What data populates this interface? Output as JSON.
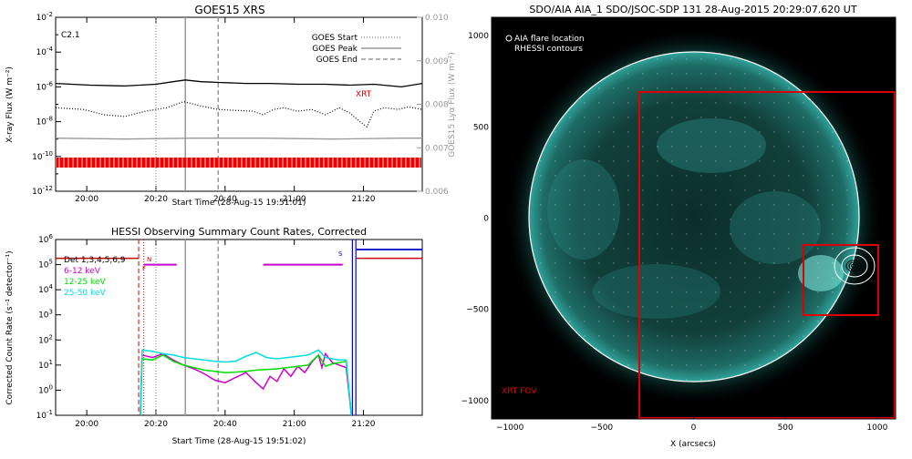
{
  "goes": {
    "title": "GOES15 XRS",
    "xlabel": "Start Time (28-Aug-15 19:51:01)",
    "ylabel_left": "X-ray Flux (W m⁻²)",
    "ylabel_right": "GOES15 Lyα Flux (W m⁻²)",
    "class_label": "C2.1",
    "xrt_label": "XRT",
    "legend": [
      "GOES Start",
      "GOES Peak",
      "GOES End"
    ]
  },
  "hessi": {
    "title": "HESSI Observing Summary Count Rates, Corrected",
    "xlabel": "Start Time (28-Aug-15 19:51:02)",
    "ylabel": "Corrected Count Rate (s⁻¹ detector⁻¹)",
    "detectors": "Det 1,3,4,5,6,9",
    "legend": [
      {
        "name": "6-12 keV",
        "color": "#cc00cc"
      },
      {
        "name": "12-25 keV",
        "color": "#00dd00"
      },
      {
        "name": "25-50 keV",
        "color": "#00dddd"
      }
    ],
    "flag_N": "N",
    "flag_F": "F",
    "flag_S": "S"
  },
  "aia": {
    "title": "SDO/AIA AIA_1 SDO/JSOC-SDP 131 28-Aug-2015 20:29:07.620 UT",
    "legend1": "AIA flare location",
    "legend2": "RHESSI contours",
    "fov_label": "XRT FOV",
    "xlabel": "X (arcsecs)"
  },
  "chart_data": [
    {
      "type": "line",
      "title": "GOES15 XRS",
      "xlabel": "Start Time (28-Aug-15 19:51:01)",
      "ylabel": "X-ray Flux (W m-2)",
      "ylabel_right": "GOES15 Lyα Flux (W m-2)",
      "log_y": true,
      "x_ticks": [
        "20:00",
        "20:20",
        "20:40",
        "21:00",
        "21:20"
      ],
      "x_tick_minutes": [
        9,
        29,
        49,
        69,
        89
      ],
      "xlim_minutes": [
        0,
        106
      ],
      "y_tick_exponents": [
        -2,
        -4,
        -6,
        -8,
        -10,
        -12
      ],
      "ylim_log": [
        -12,
        -2
      ],
      "y_right_ticks": [
        "0.010",
        "0.009",
        "0.008",
        "0.007",
        "0.006"
      ],
      "ylim_right": [
        0.006,
        0.01
      ],
      "events_minutes": {
        "start": 29,
        "peak": 37.5,
        "end": 47
      },
      "series": [
        {
          "name": "",
          "color": "#000000",
          "style": "solid",
          "x": [
            0,
            10,
            20,
            29,
            34,
            37.5,
            42,
            48,
            55,
            62,
            70,
            78,
            85,
            92,
            100,
            106
          ],
          "log_y": [
            -5.8,
            -5.9,
            -5.95,
            -5.85,
            -5.7,
            -5.6,
            -5.7,
            -5.75,
            -5.8,
            -5.8,
            -5.85,
            -5.85,
            -5.9,
            -5.85,
            -6.0,
            -5.8
          ]
        },
        {
          "name": "",
          "color": "#000000",
          "style": "dotted",
          "x": [
            0,
            8,
            14,
            20,
            26,
            32,
            37,
            42,
            47,
            52,
            57,
            60,
            63,
            66,
            70,
            74,
            78,
            82,
            85,
            88,
            90,
            92,
            95,
            99,
            102,
            106
          ],
          "log_y": [
            -7.2,
            -7.3,
            -7.6,
            -7.7,
            -7.4,
            -7.2,
            -6.85,
            -7.1,
            -7.3,
            -7.35,
            -7.4,
            -7.6,
            -7.3,
            -7.2,
            -7.4,
            -7.3,
            -7.6,
            -7.2,
            -7.5,
            -8.0,
            -8.3,
            -7.4,
            -7.2,
            -7.3,
            -7.15,
            -7.3
          ]
        },
        {
          "name": "",
          "color": "#999999",
          "style": "solid",
          "x": [
            0,
            20,
            40,
            60,
            80,
            100,
            106
          ],
          "log_y": [
            -8.95,
            -9.0,
            -8.95,
            -8.95,
            -9.0,
            -8.95,
            -8.95
          ]
        }
      ]
    },
    {
      "type": "line",
      "title": "HESSI Observing Summary Count Rates, Corrected",
      "xlabel": "Start Time (28-Aug-15 19:51:02)",
      "ylabel": "Corrected Count Rate (s-1 detector-1)",
      "log_y": true,
      "x_ticks": [
        "20:00",
        "20:20",
        "20:40",
        "21:00",
        "21:20"
      ],
      "x_tick_minutes": [
        9,
        29,
        49,
        69,
        89
      ],
      "xlim_minutes": [
        0,
        106
      ],
      "y_tick_exponents": [
        5,
        4,
        3,
        2,
        1,
        0,
        -1
      ],
      "ylim_log": [
        -1,
        6
      ],
      "legend_position": "top-left",
      "series": [
        {
          "name": "6-12 keV",
          "color": "#cc00cc",
          "x": [
            24.5,
            25,
            28,
            31,
            34,
            37,
            40,
            43,
            46,
            49,
            52,
            55,
            58,
            60,
            62,
            64,
            66,
            68,
            70,
            72,
            74,
            76,
            77,
            78,
            80,
            82,
            84,
            85.5
          ],
          "log_y": [
            -1,
            1.4,
            1.3,
            1.45,
            1.2,
            1.0,
            0.85,
            0.65,
            0.4,
            0.3,
            0.5,
            0.7,
            0.3,
            0.05,
            0.55,
            0.35,
            0.85,
            0.55,
            0.95,
            0.7,
            1.1,
            1.4,
            0.9,
            1.45,
            1.1,
            1.0,
            0.9,
            -1
          ]
        },
        {
          "name": "12-25 keV",
          "color": "#00dd00",
          "x": [
            24.5,
            25,
            28,
            31,
            34,
            37,
            40,
            43,
            46,
            49,
            52,
            55,
            58,
            61,
            64,
            67,
            70,
            73,
            76,
            78,
            80,
            82,
            84,
            85.5
          ],
          "log_y": [
            -1,
            1.25,
            1.2,
            1.4,
            1.15,
            1.0,
            0.9,
            0.8,
            0.75,
            0.7,
            0.72,
            0.75,
            0.8,
            0.82,
            0.85,
            0.9,
            0.95,
            1.0,
            1.4,
            0.95,
            1.05,
            1.1,
            1.15,
            -1
          ]
        },
        {
          "name": "25-50 keV",
          "color": "#00dddd",
          "x": [
            24.5,
            25,
            28,
            31,
            34,
            37,
            40,
            43,
            46,
            49,
            52,
            55,
            58,
            61,
            64,
            67,
            70,
            73,
            76,
            78,
            80,
            82,
            84,
            85.5
          ],
          "log_y": [
            -1,
            1.6,
            1.55,
            1.45,
            1.4,
            1.3,
            1.25,
            1.2,
            1.15,
            1.12,
            1.15,
            1.35,
            1.5,
            1.3,
            1.25,
            1.3,
            1.35,
            1.4,
            1.6,
            1.3,
            1.25,
            1.2,
            1.2,
            -1
          ]
        }
      ]
    },
    {
      "type": "image",
      "title": "SDO/AIA AIA_1 SDO/JSOC-SDP 131 28-Aug-2015 20:29:07.620 UT",
      "xlabel": "X (arcsecs)",
      "xlim": [
        -1100,
        1100
      ],
      "ylim": [
        -1100,
        1100
      ],
      "x_ticks": [
        -1000,
        -500,
        0,
        500,
        1000
      ],
      "y_ticks": [
        1000,
        500,
        0,
        -500,
        -1000
      ],
      "xrt_fov": {
        "x": [
          -300,
          1100
        ],
        "y": [
          -1100,
          700
        ]
      },
      "flare_box": {
        "x": [
          600,
          1000
        ],
        "y": [
          -520,
          -140
        ]
      },
      "flare_location": {
        "x": 900,
        "y": -280
      }
    }
  ]
}
